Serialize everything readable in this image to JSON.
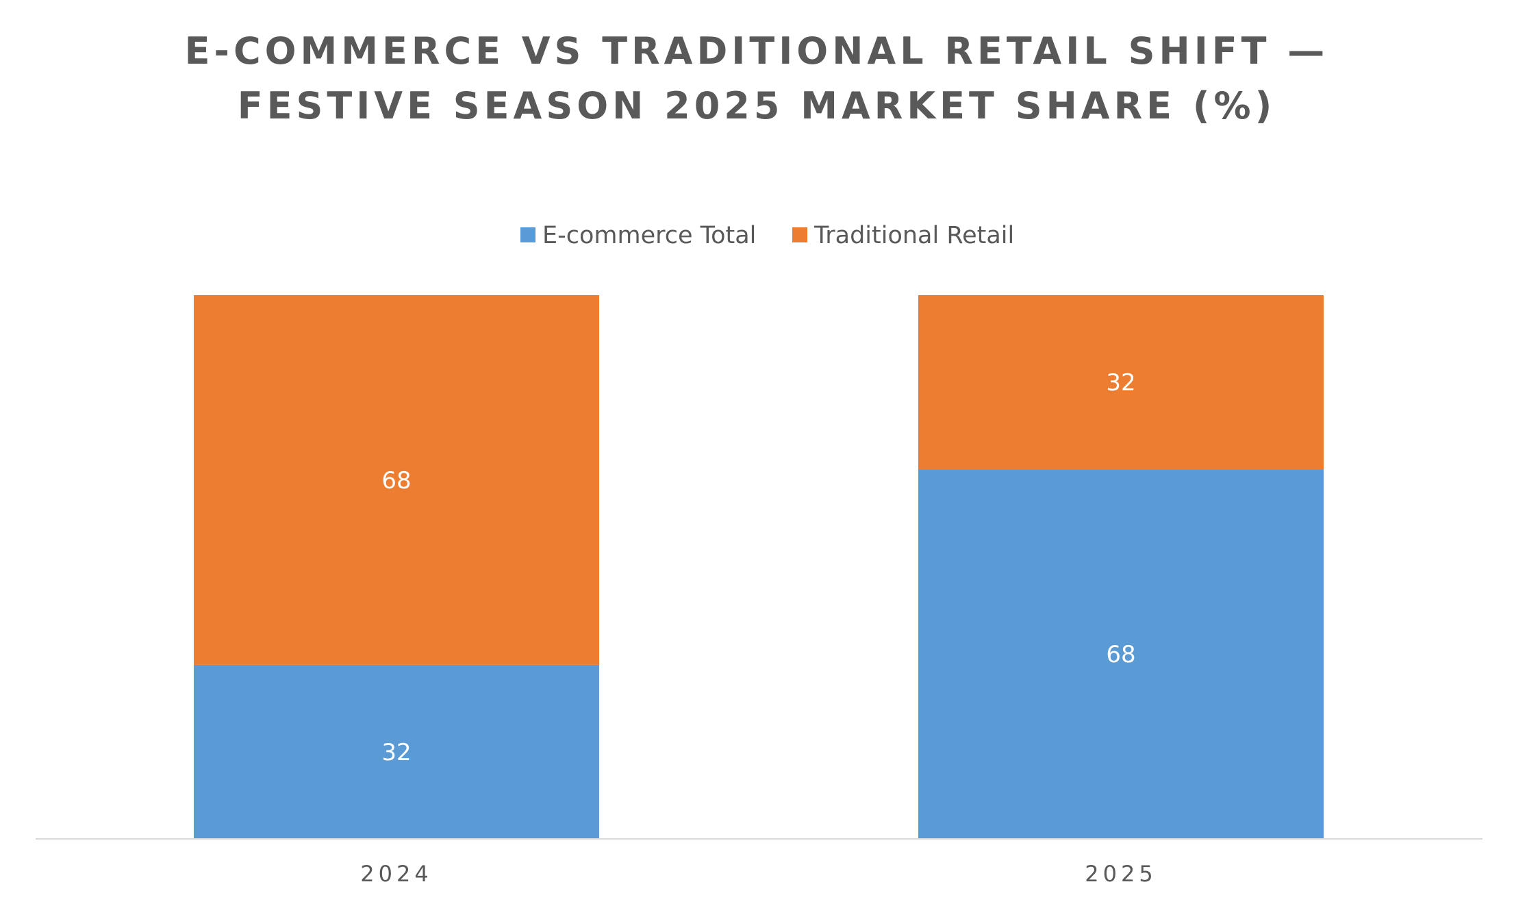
{
  "chart_data": {
    "type": "bar",
    "stacked": true,
    "title_lines": [
      "E-COMMERCE VS TRADITIONAL RETAIL SHIFT —",
      "FESTIVE SEASON 2025 MARKET SHARE (%)"
    ],
    "categories": [
      "2024",
      "2025"
    ],
    "series": [
      {
        "name": "E-commerce Total",
        "values": [
          32,
          68
        ],
        "color": "#5B9BD5"
      },
      {
        "name": "Traditional Retail",
        "values": [
          68,
          32
        ],
        "color": "#ED7D31"
      }
    ],
    "ylim": [
      0,
      100
    ],
    "legend_position": "top",
    "grid": false,
    "xlabel": "",
    "ylabel": "",
    "axis_color": "#D9D9D9"
  }
}
